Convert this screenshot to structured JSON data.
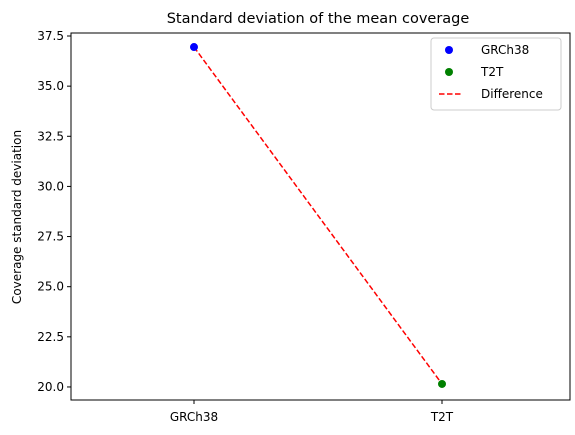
{
  "chart_data": {
    "type": "scatter",
    "title": "Standard deviation of the mean coverage",
    "xlabel": "",
    "ylabel": "Coverage standard deviation",
    "categories": [
      "GRCh38",
      "T2T"
    ],
    "ylim": [
      19.35,
      37.65
    ],
    "yticks": [
      20.0,
      22.5,
      25.0,
      27.5,
      30.0,
      32.5,
      35.0,
      37.5
    ],
    "ytick_labels": [
      "20.0",
      "22.5",
      "25.0",
      "27.5",
      "30.0",
      "32.5",
      "35.0",
      "37.5"
    ],
    "grid": false,
    "legend_position": "top-right",
    "series": [
      {
        "name": "GRCh38",
        "kind": "point",
        "category": "GRCh38",
        "value": 36.95,
        "color": "#0000ff"
      },
      {
        "name": "T2T",
        "kind": "point",
        "category": "T2T",
        "value": 20.15,
        "color": "#008000"
      },
      {
        "name": "Difference",
        "kind": "dashed-line",
        "categories": [
          "GRCh38",
          "T2T"
        ],
        "values": [
          36.95,
          20.15
        ],
        "color": "#ff0000"
      }
    ],
    "legend": [
      {
        "label": "GRCh38",
        "marker": "circle",
        "color": "#0000ff"
      },
      {
        "label": "T2T",
        "marker": "circle",
        "color": "#008000"
      },
      {
        "label": "Difference",
        "marker": "dashed-line",
        "color": "#ff0000"
      }
    ]
  }
}
